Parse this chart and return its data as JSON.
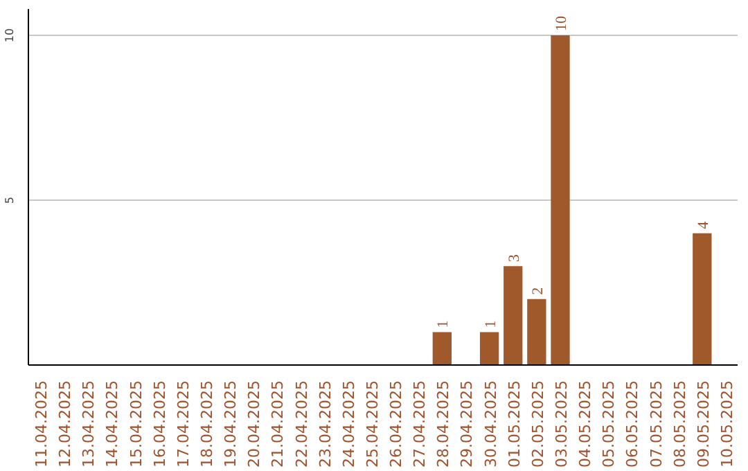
{
  "chart_data": {
    "type": "bar",
    "categories": [
      "11.04.2025",
      "12.04.2025",
      "13.04.2025",
      "14.04.2025",
      "15.04.2025",
      "16.04.2025",
      "17.04.2025",
      "18.04.2025",
      "19.04.2025",
      "20.04.2025",
      "21.04.2025",
      "22.04.2025",
      "23.04.2025",
      "24.04.2025",
      "25.04.2025",
      "26.04.2025",
      "27.04.2025",
      "28.04.2025",
      "29.04.2025",
      "30.04.2025",
      "01.05.2025",
      "02.05.2025",
      "03.05.2025",
      "04.05.2025",
      "05.05.2025",
      "06.05.2025",
      "07.05.2025",
      "08.05.2025",
      "09.05.2025",
      "10.05.2025"
    ],
    "values": [
      0,
      0,
      0,
      0,
      0,
      0,
      0,
      0,
      0,
      0,
      0,
      0,
      0,
      0,
      0,
      0,
      0,
      1,
      0,
      1,
      3,
      2,
      10,
      0,
      0,
      0,
      0,
      0,
      4,
      0
    ],
    "value_labels": [
      null,
      null,
      null,
      null,
      null,
      null,
      null,
      null,
      null,
      null,
      null,
      null,
      null,
      null,
      null,
      null,
      null,
      "1",
      null,
      "1",
      "3",
      "2",
      "10",
      null,
      null,
      null,
      null,
      null,
      "4",
      null
    ],
    "color": "#a0592b",
    "ylim": [
      0,
      10.8
    ],
    "yticks": [
      5,
      10
    ],
    "grid": "y"
  }
}
